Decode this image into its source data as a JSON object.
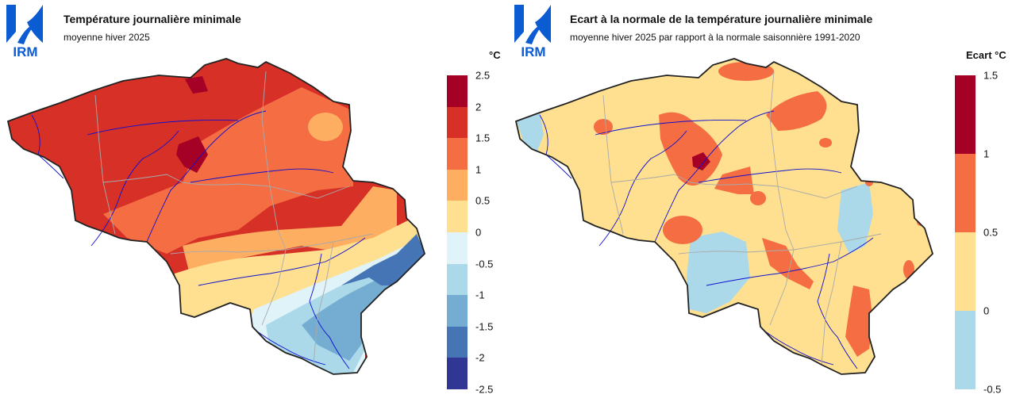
{
  "left": {
    "title": "Température journalière minimale",
    "subtitle": "moyenne hiver 2025",
    "logo_text": "IRM",
    "legend": {
      "unit": "°C",
      "ticks": [
        "2.5",
        "2",
        "1.5",
        "1",
        "0.5",
        "0",
        "-0.5",
        "-1",
        "-1.5",
        "-2",
        "-2.5"
      ],
      "colors": [
        "#a50026",
        "#d73027",
        "#f46d43",
        "#fdae61",
        "#fee090",
        "#e0f3f8",
        "#abd9e9",
        "#74add1",
        "#4575b4",
        "#313695"
      ]
    }
  },
  "right": {
    "title": "Ecart à la normale de la température journalière minimale",
    "subtitle": "moyenne hiver 2025 par rapport à la normale saisonnière 1991-2020",
    "logo_text": "IRM",
    "legend": {
      "unit": "Ecart °C",
      "ticks": [
        "1.5",
        "1",
        "0.5",
        "0",
        "-0.5"
      ],
      "colors": [
        "#a50026",
        "#f46d43",
        "#fee090",
        "#abd9e9"
      ]
    }
  },
  "colors": {
    "logo": "#0b5bd3",
    "border": "#222222",
    "river": "#1010d0",
    "province": "#aaaaaa"
  }
}
